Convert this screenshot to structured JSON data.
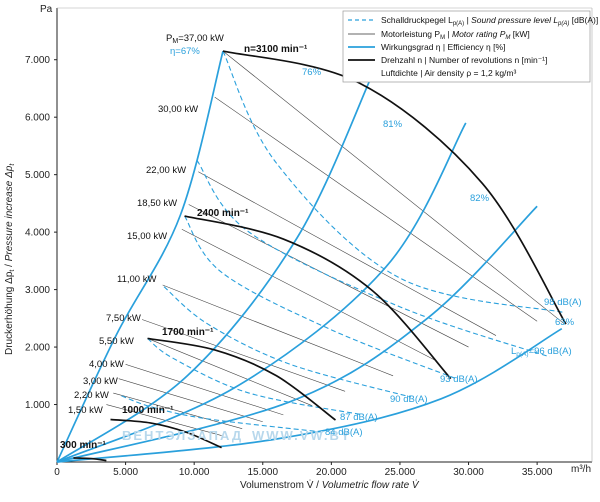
{
  "chart_data": {
    "type": "line",
    "title": "",
    "xlabel": "Volumenstrom V̇ / Volumetric flow rate V̇",
    "ylabel": "Druckerhöhung Δp_t / Pressure increase Δp_t",
    "x_unit": "m³/h",
    "y_unit": "Pa",
    "xlim": [
      0,
      39000
    ],
    "ylim": [
      0,
      7900
    ],
    "x_ticks": [
      "0",
      "5.000",
      "10.000",
      "15.000",
      "20.000",
      "25.000",
      "30.000",
      "35.000"
    ],
    "y_ticks": [
      "1.000",
      "2.000",
      "3.000",
      "4.000",
      "5.000",
      "6.000",
      "7.000"
    ],
    "grid": false,
    "legend_position": "top-right",
    "legend": [
      {
        "text": "Schalldruckpegel L_p(A) | Sound pressure level L_p(A) [dB(A)]",
        "style": "dashed-blue"
      },
      {
        "text": "Motorleistung P_M | Motor rating P_M [kW]",
        "style": "thin-black"
      },
      {
        "text": "Wirkungsgrad η | Efficiency η [%]",
        "style": "blue"
      },
      {
        "text": "Drehzahl n | Number of revolutions n [min⁻¹]",
        "style": "bold-black"
      },
      {
        "text": "Luftdichte | Air density ρ = 1,2 kg/m³",
        "style": "none"
      }
    ],
    "speed_curves": [
      {
        "name": "3100 min⁻¹",
        "label": "n=3100 min⁻¹",
        "points": [
          [
            12100,
            7150
          ],
          [
            22000,
            6600
          ],
          [
            31000,
            4850
          ],
          [
            37100,
            2400
          ]
        ]
      },
      {
        "name": "2400 min⁻¹",
        "label": "2400 min⁻¹",
        "points": [
          [
            9300,
            4280
          ],
          [
            16500,
            3880
          ],
          [
            23000,
            2980
          ],
          [
            28700,
            1450
          ]
        ]
      },
      {
        "name": "1700 min⁻¹",
        "label": "1700 min⁻¹",
        "points": [
          [
            6600,
            2150
          ],
          [
            11500,
            1950
          ],
          [
            16000,
            1500
          ],
          [
            20300,
            730
          ]
        ]
      },
      {
        "name": "1000 min⁻¹",
        "label": "1000 min⁻¹",
        "points": [
          [
            3900,
            740
          ],
          [
            6800,
            680
          ],
          [
            9400,
            520
          ],
          [
            12000,
            250
          ]
        ]
      },
      {
        "name": "300 min⁻¹",
        "label": "300 min⁻¹",
        "points": [
          [
            1200,
            70
          ],
          [
            2500,
            60
          ],
          [
            3600,
            25
          ]
        ]
      }
    ],
    "efficiency_lines": [
      {
        "label": "η=67%",
        "points": [
          [
            0,
            0
          ],
          [
            4300,
            2200
          ],
          [
            9000,
            4300
          ],
          [
            12100,
            7150
          ]
        ]
      },
      {
        "label": "76%",
        "points": [
          [
            0,
            0
          ],
          [
            9500,
            1500
          ],
          [
            17500,
            3900
          ],
          [
            23000,
            6750
          ]
        ]
      },
      {
        "label": "81%",
        "points": [
          [
            0,
            0
          ],
          [
            13000,
            1300
          ],
          [
            24000,
            3400
          ],
          [
            29800,
            5900
          ]
        ]
      },
      {
        "label": "82%",
        "points": [
          [
            0,
            0
          ],
          [
            17000,
            1050
          ],
          [
            27000,
            2500
          ],
          [
            35000,
            4450
          ]
        ]
      },
      {
        "label": "63%",
        "points": [
          [
            0,
            0
          ],
          [
            16000,
            400
          ],
          [
            28000,
            1100
          ],
          [
            36800,
            2320
          ]
        ]
      }
    ],
    "sound_lines": [
      {
        "label": "98 dB(A)",
        "points": [
          [
            12100,
            7150
          ],
          [
            16000,
            5200
          ],
          [
            25000,
            3200
          ],
          [
            37000,
            2600
          ]
        ]
      },
      {
        "label": "L_p(A)=96 dB(A)",
        "points": [
          [
            10200,
            5250
          ],
          [
            14000,
            4000
          ],
          [
            25000,
            2700
          ],
          [
            35900,
            1830
          ]
        ]
      },
      {
        "label": "93 dB(A)",
        "points": [
          [
            9300,
            4280
          ],
          [
            12000,
            3300
          ],
          [
            20000,
            2300
          ],
          [
            29100,
            1450
          ]
        ]
      },
      {
        "label": "90 dB(A)",
        "points": [
          [
            7800,
            3050
          ],
          [
            11000,
            2400
          ],
          [
            17000,
            1700
          ],
          [
            25800,
            1130
          ]
        ]
      },
      {
        "label": "87 dB(A)",
        "points": [
          [
            6600,
            2150
          ],
          [
            8500,
            1800
          ],
          [
            14000,
            1200
          ],
          [
            22300,
            820
          ]
        ]
      },
      {
        "label": "84 dB(A)",
        "points": [
          [
            4700,
            1150
          ],
          [
            7000,
            950
          ],
          [
            11000,
            750
          ],
          [
            19400,
            520
          ]
        ]
      }
    ],
    "power_lines": [
      {
        "label": "P_M=37,00 kW",
        "points": [
          [
            12100,
            7150
          ],
          [
            37000,
            2400
          ]
        ]
      },
      {
        "label": "30,00 kW",
        "points": [
          [
            11500,
            6350
          ],
          [
            35000,
            2450
          ]
        ]
      },
      {
        "label": "22,00 kW",
        "points": [
          [
            10300,
            5050
          ],
          [
            32000,
            2200
          ]
        ]
      },
      {
        "label": "18,50 kW",
        "points": [
          [
            9600,
            4480
          ],
          [
            30000,
            2000
          ]
        ]
      },
      {
        "label": "15,00 kW",
        "points": [
          [
            9100,
            4050
          ],
          [
            27500,
            1780
          ]
        ]
      },
      {
        "label": "11,00 kW",
        "points": [
          [
            7700,
            3080
          ],
          [
            24500,
            1500
          ]
        ]
      },
      {
        "label": "7,50 kW",
        "points": [
          [
            6200,
            2480
          ],
          [
            21000,
            1230
          ]
        ]
      },
      {
        "label": "5,50 kW",
        "points": [
          [
            6600,
            2150
          ],
          [
            18600,
            980
          ]
        ]
      },
      {
        "label": "4,00 kW",
        "points": [
          [
            5000,
            1700
          ],
          [
            16500,
            820
          ]
        ]
      },
      {
        "label": "3,00 kW",
        "points": [
          [
            4500,
            1450
          ],
          [
            15000,
            700
          ]
        ]
      },
      {
        "label": "2,20 kW",
        "points": [
          [
            4100,
            1200
          ],
          [
            13500,
            580
          ]
        ]
      },
      {
        "label": "1,50 kW",
        "points": [
          [
            3600,
            1000
          ],
          [
            12000,
            460
          ]
        ]
      }
    ],
    "watermark": "ВЕНТЭЛЗАПАД WWW.VW.BY"
  },
  "axis": {
    "y_unit": "Pa",
    "x_unit": "m³/h",
    "xlabel_main": "Volumenstrom V̇ / ",
    "xlabel_italic": "Volumetric flow rate V̇",
    "ylabel_main": "Druckerhöhung Δp",
    "ylabel_italic": "Pressure increase Δp"
  },
  "legend_text": {
    "sound": "Schalldruckpegel L",
    "sound_sub": "p(A)",
    "sound_rest": " | Sound pressure level L",
    "sound_rest2": " [dB(A)]",
    "motor": "Motorleistung P",
    "motor_sub": "M",
    "motor_rest": " | Motor rating P",
    "motor_rest2": " [kW]",
    "eff": "Wirkungsgrad η | Efficiency η [%]",
    "rpm": "Drehzahl n | Number of revolutions n [min⁻¹]",
    "air": "Luftdichte | Air density ρ = 1,2 kg/m³"
  },
  "labels": {
    "pm": "P",
    "pm_sub": "M",
    "pm_val": "=37,00 kW",
    "eta67": "η=67%",
    "n3100": "n=3100 min⁻¹",
    "n2400": "2400 min⁻¹",
    "n1700": "1700 min⁻¹",
    "n1000": "1000 min⁻¹",
    "n300": "300 min⁻¹",
    "e76": "76%",
    "e81": "81%",
    "e82": "82%",
    "e63": "63%",
    "kw30": "30,00 kW",
    "kw22": "22,00 kW",
    "kw185": "18,50 kW",
    "kw15": "15,00 kW",
    "kw11": "11,00 kW",
    "kw75": "7,50 kW",
    "kw55": "5,50 kW",
    "kw4": "4,00 kW",
    "kw3": "3,00 kW",
    "kw22b": "2,20 kW",
    "kw15b": "1,50 kW",
    "db98": "98 dB(A)",
    "db96": "L",
    "db96_sub": "p(A)",
    "db96_val": "=96 dB(A)",
    "db93": "93 dB(A)",
    "db90": "90 dB(A)",
    "db87": "87 dB(A)",
    "db84": "84 dB(A)",
    "wm1": "ВЕНТЭЛЗАПАД",
    "wm2": "WWW.VW.BY"
  }
}
